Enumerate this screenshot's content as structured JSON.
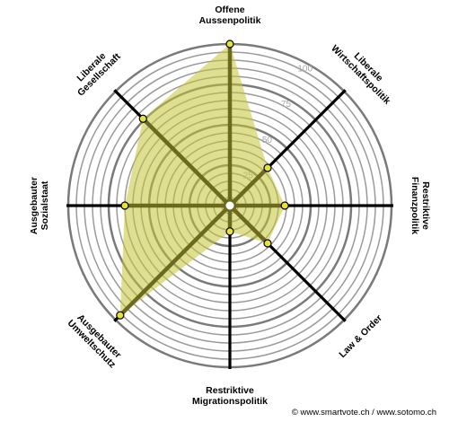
{
  "chart_data": {
    "type": "radar",
    "rlim": [
      0,
      100
    ],
    "ring_step": 5,
    "axes": [
      {
        "label_lines": [
          "Offene",
          "Aussenpolitik"
        ],
        "value": 100
      },
      {
        "label_lines": [
          "Liberale",
          "Wirtschaftspolitik"
        ],
        "value": 33
      },
      {
        "label_lines": [
          "Restriktive",
          "Finanzpolitik"
        ],
        "value": 34
      },
      {
        "label_lines": [
          "Law & Order"
        ],
        "value": 33
      },
      {
        "label_lines": [
          "Restriktive",
          "Migrationspolitik"
        ],
        "value": 16
      },
      {
        "label_lines": [
          "Ausgebauter",
          "Umweltschutz"
        ],
        "value": 96
      },
      {
        "label_lines": [
          "Ausgebauter",
          "Sozialstaat"
        ],
        "value": 65
      },
      {
        "label_lines": [
          "Liberale",
          "Gesellschaft"
        ],
        "value": 76
      }
    ],
    "tick_labels": [
      {
        "value": 25,
        "text": "25"
      },
      {
        "value": 50,
        "text": "50"
      },
      {
        "value": 75,
        "text": "75"
      },
      {
        "value": 100,
        "text": "100"
      }
    ],
    "colors": {
      "fill": "#c2c436",
      "fill_opacity": 0.55,
      "spoke": "#6b6a1f",
      "marker": "#e6e23a",
      "marker_stroke": "#000000"
    }
  },
  "credit": "© www.smartvote.ch / www.sotomo.ch"
}
